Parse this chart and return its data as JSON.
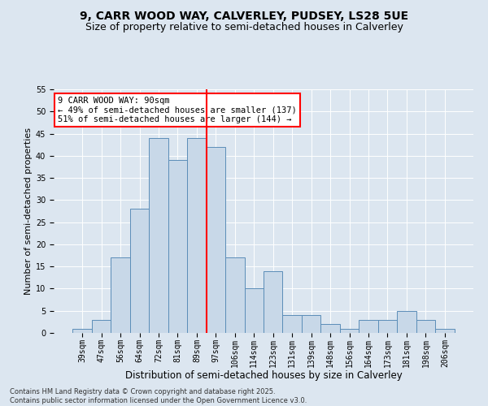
{
  "title1": "9, CARR WOOD WAY, CALVERLEY, PUDSEY, LS28 5UE",
  "title2": "Size of property relative to semi-detached houses in Calverley",
  "xlabel": "Distribution of semi-detached houses by size in Calverley",
  "ylabel": "Number of semi-detached properties",
  "categories": [
    "39sqm",
    "47sqm",
    "56sqm",
    "64sqm",
    "72sqm",
    "81sqm",
    "89sqm",
    "97sqm",
    "106sqm",
    "114sqm",
    "123sqm",
    "131sqm",
    "139sqm",
    "148sqm",
    "156sqm",
    "164sqm",
    "173sqm",
    "181sqm",
    "198sqm",
    "206sqm"
  ],
  "values": [
    1,
    3,
    17,
    28,
    44,
    39,
    44,
    42,
    17,
    10,
    14,
    4,
    4,
    2,
    1,
    3,
    3,
    5,
    3,
    1
  ],
  "bar_color": "#c8d8e8",
  "bar_edge_color": "#5b8db8",
  "vline_color": "red",
  "vline_index": 6,
  "annotation_title": "9 CARR WOOD WAY: 90sqm",
  "annotation_line1": "← 49% of semi-detached houses are smaller (137)",
  "annotation_line2": "51% of semi-detached houses are larger (144) →",
  "ylim": [
    0,
    55
  ],
  "yticks": [
    0,
    5,
    10,
    15,
    20,
    25,
    30,
    35,
    40,
    45,
    50,
    55
  ],
  "background_color": "#dce6f0",
  "plot_background": "#dce6f0",
  "footer": "Contains HM Land Registry data © Crown copyright and database right 2025.\nContains public sector information licensed under the Open Government Licence v3.0.",
  "title1_fontsize": 10,
  "title2_fontsize": 9,
  "xlabel_fontsize": 8.5,
  "ylabel_fontsize": 8,
  "tick_fontsize": 7,
  "ann_fontsize": 7.5,
  "footer_fontsize": 6
}
